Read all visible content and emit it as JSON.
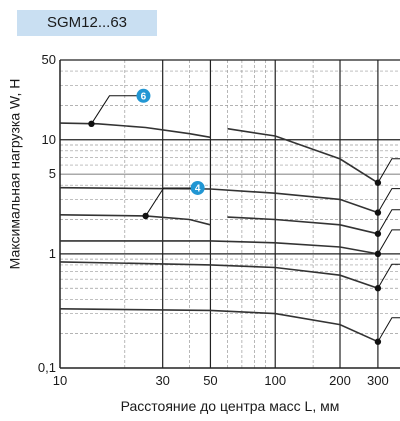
{
  "header": {
    "title": "SGM12...63"
  },
  "chart_data": {
    "type": "line",
    "xlabel": "Расстояние до центра масс L, мм",
    "ylabel": "Максимальная нагрузка W, Н",
    "x_scale": "log",
    "y_scale": "log",
    "xlim": [
      10,
      380
    ],
    "ylim": [
      0.1,
      50
    ],
    "x_ticks": [
      {
        "value": 10,
        "label": "10"
      },
      {
        "value": 30,
        "label": "30"
      },
      {
        "value": 50,
        "label": "50"
      },
      {
        "value": 100,
        "label": "100"
      },
      {
        "value": 200,
        "label": "200"
      },
      {
        "value": 300,
        "label": "300"
      }
    ],
    "y_ticks": [
      {
        "value": 0.1,
        "label": "0,1"
      },
      {
        "value": 1,
        "label": "1"
      },
      {
        "value": 5,
        "label": "5"
      },
      {
        "value": 10,
        "label": "10"
      },
      {
        "value": 50,
        "label": "50"
      }
    ],
    "grid": true,
    "series": [
      {
        "marker": "6",
        "points": [
          [
            10,
            14
          ],
          [
            15,
            13.8
          ],
          [
            25,
            12.8
          ],
          [
            40,
            11.3
          ],
          [
            50,
            10.5
          ]
        ]
      },
      {
        "points": [
          [
            60,
            12.5
          ],
          [
            100,
            10.8
          ],
          [
            200,
            6.8
          ],
          [
            300,
            4.2
          ]
        ]
      },
      {
        "points": [
          [
            10,
            3.8
          ],
          [
            50,
            3.7
          ],
          [
            100,
            3.4
          ],
          [
            200,
            3.0
          ],
          [
            300,
            2.3
          ]
        ]
      },
      {
        "marker": "4",
        "points": [
          [
            10,
            2.2
          ],
          [
            25,
            2.15
          ],
          [
            40,
            2.0
          ],
          [
            50,
            1.8
          ]
        ]
      },
      {
        "points": [
          [
            60,
            2.1
          ],
          [
            100,
            2.0
          ],
          [
            200,
            1.8
          ],
          [
            300,
            1.5
          ]
        ]
      },
      {
        "points": [
          [
            10,
            1.3
          ],
          [
            50,
            1.3
          ],
          [
            100,
            1.25
          ],
          [
            200,
            1.15
          ],
          [
            300,
            1.0
          ]
        ]
      },
      {
        "points": [
          [
            10,
            0.85
          ],
          [
            50,
            0.8
          ],
          [
            100,
            0.76
          ],
          [
            200,
            0.65
          ],
          [
            300,
            0.5
          ]
        ]
      },
      {
        "points": [
          [
            10,
            0.33
          ],
          [
            50,
            0.32
          ],
          [
            100,
            0.3
          ],
          [
            200,
            0.24
          ],
          [
            300,
            0.17
          ]
        ]
      }
    ],
    "markers": [
      {
        "label": "6",
        "color": "#2196d3",
        "x": 14,
        "y": 13.8
      },
      {
        "label": "4",
        "color": "#2196d3",
        "x": 25,
        "y": 2.15
      }
    ]
  }
}
